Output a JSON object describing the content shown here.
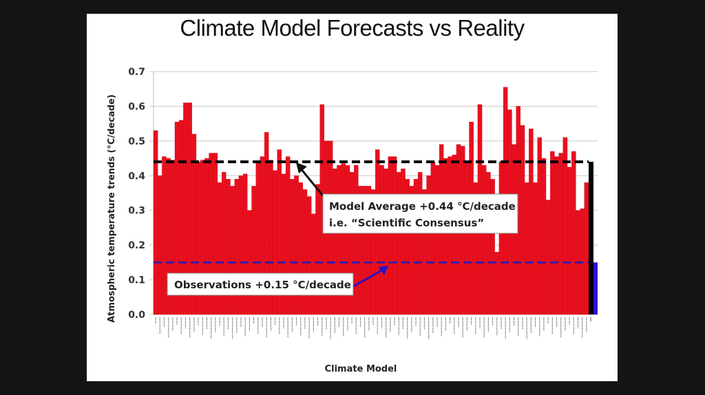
{
  "chart_data": {
    "type": "bar",
    "title": "Climate Model Forecasts vs Reality",
    "xlabel": "Climate Model",
    "ylabel": "Atmospheric temperature trends (°C/decade)",
    "ylim": [
      0.0,
      0.7
    ],
    "yticks": [
      "0.0",
      "0.1",
      "0.2",
      "0.3",
      "0.4",
      "0.5",
      "0.6",
      "0.7"
    ],
    "grid": true,
    "model_values": [
      0.53,
      0.4,
      0.455,
      0.45,
      0.445,
      0.555,
      0.56,
      0.61,
      0.61,
      0.52,
      0.44,
      0.445,
      0.45,
      0.465,
      0.465,
      0.38,
      0.41,
      0.39,
      0.37,
      0.39,
      0.4,
      0.405,
      0.3,
      0.37,
      0.44,
      0.455,
      0.525,
      0.445,
      0.415,
      0.475,
      0.405,
      0.455,
      0.39,
      0.4,
      0.38,
      0.36,
      0.34,
      0.29,
      0.375,
      0.605,
      0.5,
      0.5,
      0.42,
      0.43,
      0.435,
      0.43,
      0.41,
      0.43,
      0.37,
      0.37,
      0.37,
      0.36,
      0.475,
      0.43,
      0.42,
      0.455,
      0.455,
      0.41,
      0.42,
      0.39,
      0.37,
      0.39,
      0.41,
      0.36,
      0.4,
      0.44,
      0.43,
      0.49,
      0.45,
      0.455,
      0.46,
      0.49,
      0.485,
      0.44,
      0.555,
      0.38,
      0.605,
      0.43,
      0.41,
      0.39,
      0.18,
      0.44,
      0.655,
      0.59,
      0.49,
      0.6,
      0.545,
      0.38,
      0.535,
      0.38,
      0.51,
      0.45,
      0.33,
      0.47,
      0.455,
      0.465,
      0.51,
      0.425,
      0.47,
      0.3,
      0.305,
      0.38
    ],
    "model_average_bar": 0.44,
    "observations_bar": 0.15,
    "series": [
      {
        "name": "Climate models",
        "color": "#e8101e"
      },
      {
        "name": "Model average",
        "color": "#000000"
      },
      {
        "name": "Observations",
        "color": "#2a10d8"
      }
    ],
    "reference_lines": [
      {
        "name": "Model Average",
        "value": 0.44,
        "color": "#000000",
        "style": "dashed"
      },
      {
        "name": "Observations",
        "value": 0.15,
        "color": "#3a1aa8",
        "style": "dashed"
      }
    ],
    "annotations": [
      {
        "line1": "Model Average +0.44 °C/decade",
        "line2": "i.e. “Scientific Consensus”"
      },
      {
        "line1": "Observations +0.15 °C/decade"
      }
    ]
  }
}
